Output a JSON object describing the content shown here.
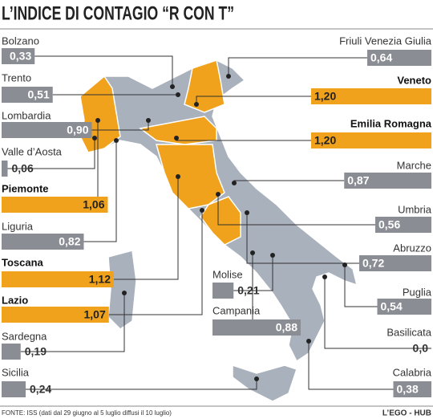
{
  "chart_data": {
    "type": "bar",
    "title": "L’INDICE DI CONTAGIO “R CON T”",
    "categories": [
      "Bolzano",
      "Trento",
      "Lombardia",
      "Valle d’Aosta",
      "Piemonte",
      "Liguria",
      "Toscana",
      "Lazio",
      "Sardegna",
      "Sicilia",
      "Friuli Venezia Giulia",
      "Veneto",
      "Emilia Romagna",
      "Marche",
      "Umbria",
      "Abruzzo",
      "Puglia",
      "Basilicata",
      "Calabria",
      "Molise",
      "Campania"
    ],
    "values": [
      0.33,
      0.51,
      0.9,
      0.06,
      1.06,
      0.82,
      1.12,
      1.07,
      0.19,
      0.24,
      0.64,
      1.2,
      1.2,
      0.87,
      0.56,
      0.72,
      0.54,
      0.0,
      0.38,
      0.21,
      0.88
    ],
    "value_labels": [
      "0,33",
      "0,51",
      "0,90",
      "0,06",
      "1,06",
      "0,82",
      "1,12",
      "1,07",
      "0,19",
      "0,24",
      "0,64",
      "1,20",
      "1,20",
      "0,87",
      "0,56",
      "0,72",
      "0,54",
      "0,0",
      "0,38",
      "0,21",
      "0,88"
    ],
    "colors": [
      "#8a8d93",
      "#8a8d93",
      "#8a8d93",
      "#8a8d93",
      "#f0a21c",
      "#8a8d93",
      "#f0a21c",
      "#f0a21c",
      "#8a8d93",
      "#8a8d93",
      "#8a8d93",
      "#f0a21c",
      "#f0a21c",
      "#8a8d93",
      "#8a8d93",
      "#8a8d93",
      "#8a8d93",
      "#8a8d93",
      "#8a8d93",
      "#8a8d93",
      "#8a8d93"
    ],
    "highlight_color": "#f0a21c",
    "source": "FONTE: ISS (dati dal 29 giugno al 5 luglio diffusi il 10 luglio)",
    "credit": "L’EGO - HUB"
  }
}
